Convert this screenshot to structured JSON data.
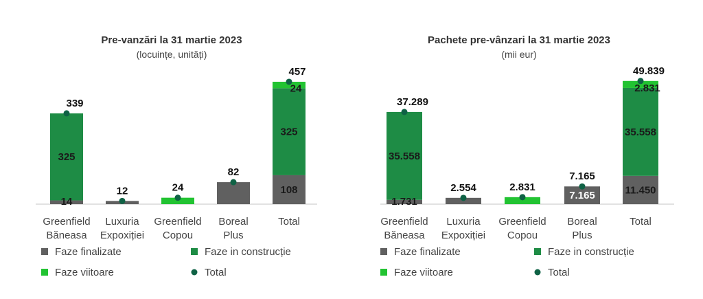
{
  "charts": [
    {
      "type": "bar",
      "stacked": true,
      "title": "Pre-vanzări la 31 martie 2023",
      "subtitle": "(locuințe, unități)",
      "categories": [
        [
          "Greenfield",
          "Băneasa"
        ],
        [
          "Luxuria",
          "Expoxiției"
        ],
        [
          "Greenfield",
          "Copou"
        ],
        [
          "Boreal",
          "Plus"
        ],
        [
          "Total"
        ]
      ],
      "ymax": 480,
      "series": [
        {
          "name": "Faze finalizate",
          "color": "#606060",
          "values": [
            14,
            12,
            0,
            82,
            108
          ],
          "labels": [
            "14",
            "",
            "",
            "",
            "108"
          ],
          "label_color": "#1a1a1a"
        },
        {
          "name": "Faze in construcție",
          "color": "#1e8c45",
          "values": [
            325,
            0,
            0,
            0,
            325
          ],
          "labels": [
            "325",
            "",
            "",
            "",
            "325"
          ],
          "label_color": "#1a1a1a"
        },
        {
          "name": "Faze viitoare",
          "color": "#22c332",
          "values": [
            0,
            0,
            24,
            0,
            24
          ],
          "labels": [
            "",
            "",
            "",
            "",
            "24"
          ],
          "label_color": "#1a1a1a"
        }
      ],
      "total": {
        "name": "Total",
        "color": "#0f6245",
        "values": [
          339,
          12,
          24,
          82,
          457
        ],
        "labels": [
          "339",
          "12",
          "24",
          "82",
          "457"
        ]
      }
    },
    {
      "type": "bar",
      "stacked": true,
      "title": "Pachete pre-vânzari la 31 martie 2023",
      "subtitle": "(mii eur)",
      "categories": [
        [
          "Greenfield",
          "Băneasa"
        ],
        [
          "Luxuria",
          "Expoxiției"
        ],
        [
          "Greenfield",
          "Copou"
        ],
        [
          "Boreal",
          "Plus"
        ],
        [
          "Total"
        ]
      ],
      "ymax": 52000,
      "series": [
        {
          "name": "Faze finalizate",
          "color": "#606060",
          "values": [
            1731,
            2554,
            0,
            7165,
            11450
          ],
          "labels": [
            "1.731",
            "",
            "",
            "7.165",
            "11.450"
          ],
          "label_color": "#1a1a1a",
          "label_colors": [
            "#1a1a1a",
            "#1a1a1a",
            "#1a1a1a",
            "#ffffff",
            "#1a1a1a"
          ]
        },
        {
          "name": "Faze in construcție",
          "color": "#1e8c45",
          "values": [
            35558,
            0,
            0,
            0,
            35558
          ],
          "labels": [
            "35.558",
            "",
            "",
            "",
            "35.558"
          ],
          "label_color": "#1a1a1a"
        },
        {
          "name": "Faze viitoare",
          "color": "#22c332",
          "values": [
            0,
            0,
            2831,
            0,
            2831
          ],
          "labels": [
            "",
            "",
            "",
            "",
            "2.831"
          ],
          "label_color": "#1a1a1a"
        }
      ],
      "total": {
        "name": "Total",
        "color": "#0f6245",
        "values": [
          37289,
          2554,
          2831,
          7165,
          49839
        ],
        "labels": [
          "37.289",
          "2.554",
          "2.831",
          "7.165",
          "49.839"
        ]
      }
    }
  ]
}
